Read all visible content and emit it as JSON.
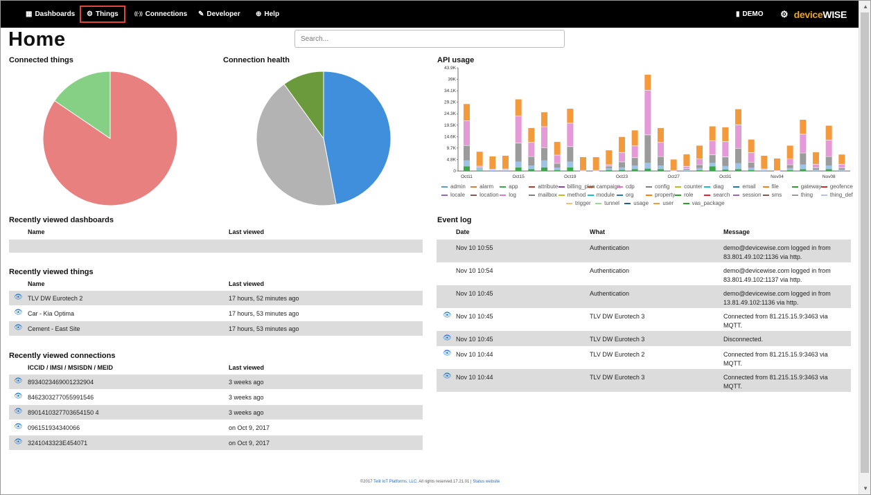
{
  "nav": {
    "items": [
      {
        "label": "Dashboards",
        "icon": "dashboard-icon",
        "glyph": "▦"
      },
      {
        "label": "Things",
        "icon": "things-icon",
        "glyph": "⚙"
      },
      {
        "label": "Connections",
        "icon": "connections-icon",
        "glyph": "((·))"
      },
      {
        "label": "Developer",
        "icon": "wrench-icon",
        "glyph": "✎"
      },
      {
        "label": "Help",
        "icon": "globe-icon",
        "glyph": "⊕"
      }
    ],
    "active": "Things",
    "org_label": "DEMO",
    "org_icon": "building-icon",
    "settings_icon": "gear-icon",
    "logo_part1": "device",
    "logo_part2": "WISE"
  },
  "page": {
    "title": "Home"
  },
  "search": {
    "placeholder": "Search..."
  },
  "charts": {
    "connected_things": {
      "title": "Connected things"
    },
    "connection_health": {
      "title": "Connection health"
    },
    "api_usage": {
      "title": "API usage"
    }
  },
  "chart_data": [
    {
      "type": "pie",
      "title": "Connected things",
      "values": [
        84.5,
        15.5
      ],
      "colors": [
        "#e88080",
        "#85d085"
      ]
    },
    {
      "type": "pie",
      "title": "Connection health",
      "values": [
        47,
        43,
        10
      ],
      "colors": [
        "#3f8fdc",
        "#b3b3b3",
        "#6a9a3b"
      ]
    },
    {
      "type": "bar",
      "title": "API usage",
      "stacked": true,
      "x_ticks": [
        "Oct11",
        "Oct15",
        "Oct19",
        "Oct23",
        "Oct27",
        "Oct31",
        "Nov04",
        "Nov08"
      ],
      "y_ticks": [
        "0",
        "4.8K",
        "9.7K",
        "14.6K",
        "19.5K",
        "24.3K",
        "29.2K",
        "34.1K",
        "39K",
        "43.9K"
      ],
      "ylim": [
        0,
        43900
      ],
      "series_names": [
        "admin",
        "alarm",
        "app",
        "attribute",
        "billing_plan",
        "campaign",
        "cdp",
        "config",
        "counter",
        "diag",
        "email",
        "file",
        "gateway",
        "geofence",
        "locale",
        "location",
        "log",
        "mailbox",
        "method",
        "module",
        "org",
        "property",
        "role",
        "search",
        "session",
        "sms",
        "thing",
        "thing_def",
        "trigger",
        "tunnel",
        "usage",
        "user",
        "vas_package"
      ],
      "series_colors": [
        "#5b9bd5",
        "#e07b39",
        "#3aa84a",
        "#c0392b",
        "#8e44ad",
        "#a0522d",
        "#e377c2",
        "#7f7f7f",
        "#bcbd22",
        "#17becf",
        "#1f77b4",
        "#ff7f0e",
        "#2ca02c",
        "#d62728",
        "#9467bd",
        "#8c564b",
        "#e377c2",
        "#7f7f7f",
        "#bcbd22",
        "#17becf",
        "#1f77b4",
        "#ff7f0e",
        "#2ca02c",
        "#d62728",
        "#9467bd",
        "#8c564b",
        "#999999",
        "#aec7e8",
        "#ffbb78",
        "#98df8a",
        "#1f5fa0",
        "#f39a3c",
        "#2ca02c"
      ],
      "bars": [
        {
          "orange": 7000,
          "pink": 10500,
          "gray": 6500,
          "green": 2000,
          "other": 2500
        },
        {
          "orange": 6000,
          "pink": 700,
          "gray": 500,
          "green": 200,
          "other": 800
        },
        {
          "orange": 5300,
          "pink": 300,
          "gray": 300,
          "green": 0,
          "other": 300
        },
        {
          "orange": 5500,
          "pink": 300,
          "gray": 300,
          "green": 0,
          "other": 400
        },
        {
          "orange": 7000,
          "pink": 11500,
          "gray": 8000,
          "green": 1500,
          "other": 2500
        },
        {
          "orange": 6000,
          "pink": 6000,
          "gray": 4000,
          "green": 800,
          "other": 1500
        },
        {
          "orange": 6000,
          "pink": 9000,
          "gray": 5500,
          "green": 1500,
          "other": 3000
        },
        {
          "orange": 5500,
          "pink": 3500,
          "gray": 2000,
          "green": 400,
          "other": 1000
        },
        {
          "orange": 6000,
          "pink": 10000,
          "gray": 6500,
          "green": 1500,
          "other": 2500
        },
        {
          "orange": 5500,
          "pink": 300,
          "gray": 100,
          "green": 0,
          "other": 0
        },
        {
          "orange": 5500,
          "pink": 300,
          "gray": 100,
          "green": 0,
          "other": 0
        },
        {
          "orange": 6000,
          "pink": 600,
          "gray": 1000,
          "green": 400,
          "other": 800
        },
        {
          "orange": 6500,
          "pink": 4000,
          "gray": 2500,
          "green": 500,
          "other": 1000
        },
        {
          "orange": 6500,
          "pink": 5000,
          "gray": 3500,
          "green": 800,
          "other": 1500
        },
        {
          "orange": 6500,
          "pink": 19000,
          "gray": 12000,
          "green": 1000,
          "other": 2500
        },
        {
          "orange": 6000,
          "pink": 6000,
          "gray": 4000,
          "green": 800,
          "other": 1500
        },
        {
          "orange": 4500,
          "pink": 300,
          "gray": 100,
          "green": 0,
          "other": 0
        },
        {
          "orange": 5000,
          "pink": 1000,
          "gray": 600,
          "green": 0,
          "other": 500
        },
        {
          "orange": 5500,
          "pink": 2500,
          "gray": 1500,
          "green": 300,
          "other": 1000
        },
        {
          "orange": 6000,
          "pink": 6000,
          "gray": 3500,
          "green": 2000,
          "other": 1500
        },
        {
          "orange": 6000,
          "pink": 6500,
          "gray": 4000,
          "green": 600,
          "other": 1500
        },
        {
          "orange": 6500,
          "pink": 10000,
          "gray": 6500,
          "green": 800,
          "other": 2500
        },
        {
          "orange": 5500,
          "pink": 4000,
          "gray": 2500,
          "green": 400,
          "other": 1000
        },
        {
          "orange": 5500,
          "pink": 300,
          "gray": 200,
          "green": 0,
          "other": 500
        },
        {
          "orange": 5000,
          "pink": 200,
          "gray": 100,
          "green": 0,
          "other": 0
        },
        {
          "orange": 5500,
          "pink": 2500,
          "gray": 1500,
          "green": 300,
          "other": 1000
        },
        {
          "orange": 6000,
          "pink": 8000,
          "gray": 5000,
          "green": 800,
          "other": 2000
        },
        {
          "orange": 5000,
          "pink": 1500,
          "gray": 1000,
          "green": 0,
          "other": 500
        },
        {
          "orange": 6000,
          "pink": 7000,
          "gray": 4000,
          "green": 800,
          "other": 1500
        },
        {
          "orange": 4000,
          "pink": 1500,
          "gray": 1000,
          "green": 0,
          "other": 500
        }
      ]
    }
  ],
  "dashboards": {
    "title": "Recently viewed dashboards",
    "col_name": "Name",
    "col_last": "Last viewed",
    "rows": []
  },
  "things": {
    "title": "Recently viewed things",
    "col_name": "Name",
    "col_last": "Last viewed",
    "rows": [
      {
        "name": "TLV DW Eurotech 2",
        "last": "17 hours, 52 minutes ago"
      },
      {
        "name": "Car - Kia Optima",
        "last": "17 hours, 53 minutes ago"
      },
      {
        "name": "Cement - East Site",
        "last": "17 hours, 53 minutes ago"
      }
    ]
  },
  "connections": {
    "title": "Recently viewed connections",
    "col_name": "ICCID / IMSI / MSISDN / MEID",
    "col_last": "Last viewed",
    "rows": [
      {
        "name": "8934023469001232904",
        "last": "3 weeks ago"
      },
      {
        "name": "8462303277055991546",
        "last": "3 weeks ago"
      },
      {
        "name": "8901410327703654150 4",
        "last": "3 weeks ago"
      },
      {
        "name": "096151934340066",
        "last": "on Oct 9, 2017"
      },
      {
        "name": "3241043323E454071",
        "last": "on Oct 9, 2017"
      }
    ]
  },
  "eventlog": {
    "title": "Event log",
    "col_date": "Date",
    "col_what": "What",
    "col_msg": "Message",
    "rows": [
      {
        "date": "Nov 10 10:55",
        "what": "Authentication",
        "msg1": "demo@devicewise.com logged in from",
        "msg2": "83.801.49.102:1136 via http.",
        "eye": false
      },
      {
        "date": "Nov 10 10:54",
        "what": "Authentication",
        "msg1": "demo@devicewise.com logged in from",
        "msg2": "83.801.49.102:1137 via http.",
        "eye": false
      },
      {
        "date": "Nov 10 10:45",
        "what": "Authentication",
        "msg1": "demo@devicewise.com logged in from",
        "msg2": "13.81.49.102:1136 via http.",
        "eye": false
      },
      {
        "date": "Nov 10 10:45",
        "what": "TLV DW Eurotech 3",
        "msg1": "Connected from 81.215.15.9:3463 via",
        "msg2": "MQTT.",
        "eye": true
      },
      {
        "date": "Nov 10 10:45",
        "what": "TLV DW Eurotech 3",
        "msg1": "Disconnected.",
        "msg2": "",
        "eye": true
      },
      {
        "date": "Nov 10 10:44",
        "what": "TLV DW Eurotech 2",
        "msg1": "Connected from 81.215.15.9:3463 via",
        "msg2": "MQTT.",
        "eye": true
      },
      {
        "date": "Nov 10 10:44",
        "what": "TLV DW Eurotech 3",
        "msg1": "Connected from 81.215.15.9:3463 via",
        "msg2": "MQTT.",
        "eye": true
      }
    ]
  },
  "footer": {
    "prefix": "©2017 ",
    "company": "Telit IoT Platforms, LLC",
    "mid": ". All rights reserved.17.21.01 | ",
    "status": "Status website"
  }
}
